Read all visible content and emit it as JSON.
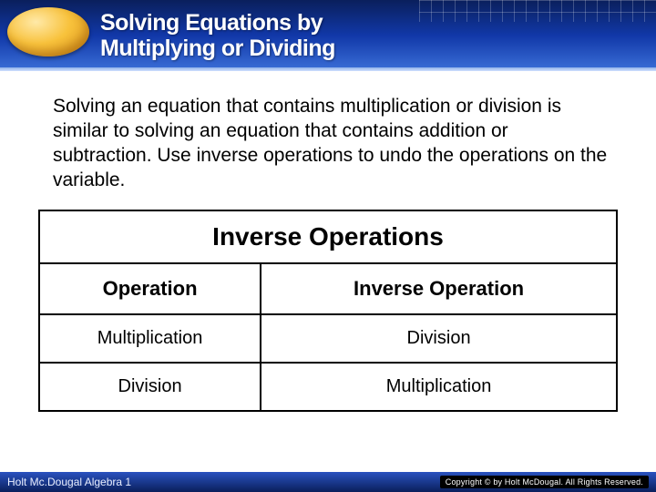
{
  "header": {
    "title_line1": "Solving Equations by",
    "title_line2": "Multiplying or Dividing",
    "banner_gradient": [
      "#0a1f5c",
      "#1138a8",
      "#3b6fd8"
    ],
    "oval_gradient": [
      "#ffe9a8",
      "#f8c23c",
      "#d88e12"
    ]
  },
  "body": {
    "paragraph": "Solving an equation that contains multiplication or division is similar to solving an equation that contains addition or subtraction. Use inverse operations to undo the operations on the variable."
  },
  "table": {
    "title": "Inverse Operations",
    "columns": [
      "Operation",
      "Inverse Operation"
    ],
    "rows": [
      [
        "Multiplication",
        "Division"
      ],
      [
        "Division",
        "Multiplication"
      ]
    ],
    "border_color": "#000000",
    "title_fontsize": 28,
    "header_fontsize": 22,
    "cell_fontsize": 20
  },
  "footer": {
    "left": "Holt Mc.Dougal Algebra 1",
    "right": "Copyright © by Holt McDougal. All Rights Reserved."
  },
  "colors": {
    "background": "#ffffff",
    "text": "#000000",
    "header_text": "#ffffff"
  }
}
